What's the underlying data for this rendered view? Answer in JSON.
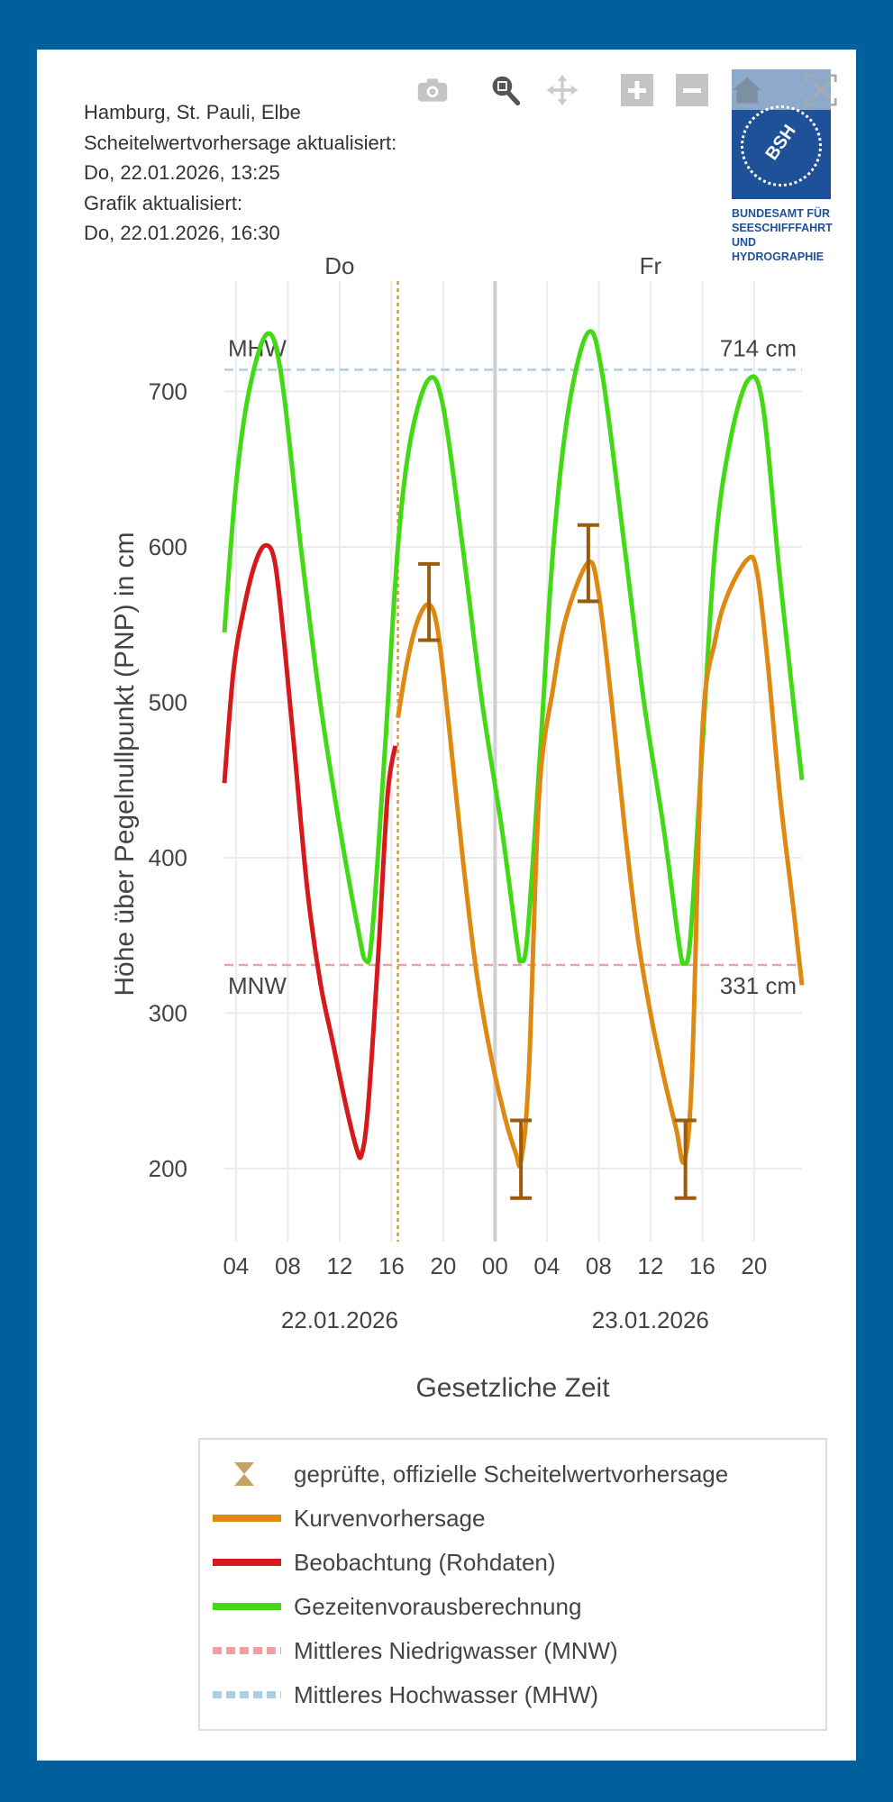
{
  "info": {
    "station": "Hamburg, St. Pauli, Elbe",
    "forecast_label": "Scheitelwertvorhersage aktualisiert:",
    "forecast_time": "Do, 22.01.2026, 13:25",
    "graphic_label": "Grafik aktualisiert:",
    "graphic_time": "Do, 22.01.2026, 16:30"
  },
  "logo": {
    "abbr": "BSH",
    "lines": [
      "BUNDESAMT FÜR",
      "SEESCHIFFFAHRT",
      "UND",
      "HYDROGRAPHIE"
    ]
  },
  "toolbar": [
    "camera-icon",
    "zoom-icon",
    "pan-icon",
    "zoom-in-icon",
    "zoom-out-icon",
    "home-icon",
    "autoscale-icon"
  ],
  "colors": {
    "forecast": "#de8a12",
    "observation": "#d7191c",
    "tide": "#44d916",
    "mnw": "#f0a0a0",
    "mhw": "#a8cfe8",
    "errorbar": "#9b5b0c",
    "bg": "#00609c"
  },
  "chart_data": {
    "type": "line",
    "xlabel": "Gesetzliche Zeit",
    "ylabel": "Höhe über Pegelnullpunkt (PNP) in cm",
    "xlim_hours": [
      3.1,
      47.7
    ],
    "ylim": [
      153,
      771
    ],
    "yticks": [
      200,
      300,
      400,
      500,
      600,
      700
    ],
    "xticks": [
      {
        "h": 4,
        "label": "04"
      },
      {
        "h": 8,
        "label": "08"
      },
      {
        "h": 12,
        "label": "12"
      },
      {
        "h": 16,
        "label": "16"
      },
      {
        "h": 20,
        "label": "20"
      },
      {
        "h": 24,
        "label": "00"
      },
      {
        "h": 28,
        "label": "04"
      },
      {
        "h": 32,
        "label": "08"
      },
      {
        "h": 36,
        "label": "12"
      },
      {
        "h": 40,
        "label": "16"
      },
      {
        "h": 44,
        "label": "20"
      }
    ],
    "dates": [
      {
        "h": 12,
        "label": "22.01.2026"
      },
      {
        "h": 36,
        "label": "23.01.2026"
      }
    ],
    "days": [
      {
        "h": 12,
        "label": "Do"
      },
      {
        "h": 36,
        "label": "Fr"
      }
    ],
    "now_hour": 16.5,
    "day_break_hour": 24,
    "mhw": {
      "value": 714,
      "label": "MHW",
      "value_label": "714 cm"
    },
    "mnw": {
      "value": 331,
      "label": "MNW",
      "value_label": "331 cm"
    },
    "series": [
      {
        "name": "Gezeitenvorausberechnung",
        "key": "tide",
        "points": [
          [
            3.1,
            545
          ],
          [
            4,
            640
          ],
          [
            5,
            700
          ],
          [
            6.4,
            737
          ],
          [
            7.5,
            710
          ],
          [
            9,
            600
          ],
          [
            10.5,
            500
          ],
          [
            12,
            420
          ],
          [
            13.4,
            355
          ],
          [
            14,
            334
          ],
          [
            14.5,
            350
          ],
          [
            15.5,
            470
          ],
          [
            16.5,
            600
          ],
          [
            17.5,
            670
          ],
          [
            18.9,
            708
          ],
          [
            20,
            690
          ],
          [
            21.5,
            600
          ],
          [
            23,
            500
          ],
          [
            24.5,
            420
          ],
          [
            25.7,
            345
          ],
          [
            26,
            334
          ],
          [
            26.5,
            350
          ],
          [
            27.5,
            470
          ],
          [
            28.5,
            600
          ],
          [
            29.7,
            690
          ],
          [
            31.2,
            738
          ],
          [
            32.3,
            710
          ],
          [
            34,
            600
          ],
          [
            35.5,
            500
          ],
          [
            37,
            420
          ],
          [
            38.2,
            345
          ],
          [
            38.6,
            332
          ],
          [
            39.1,
            350
          ],
          [
            40,
            470
          ],
          [
            41,
            600
          ],
          [
            42.2,
            670
          ],
          [
            43.6,
            708
          ],
          [
            44.7,
            690
          ],
          [
            46,
            580
          ],
          [
            47.7,
            450
          ]
        ]
      },
      {
        "name": "Beobachtung (Rohdaten)",
        "key": "observation",
        "points": [
          [
            3.1,
            448
          ],
          [
            3.8,
            520
          ],
          [
            4.6,
            560
          ],
          [
            5.5,
            590
          ],
          [
            6.3,
            601
          ],
          [
            7,
            590
          ],
          [
            7.7,
            540
          ],
          [
            8.5,
            470
          ],
          [
            9.5,
            380
          ],
          [
            10.5,
            320
          ],
          [
            11.5,
            280
          ],
          [
            12.5,
            240
          ],
          [
            13.3,
            213
          ],
          [
            13.7,
            209
          ],
          [
            14.2,
            240
          ],
          [
            15,
            340
          ],
          [
            15.7,
            440
          ],
          [
            16.3,
            472
          ]
        ]
      },
      {
        "name": "Kurvenvorhersage",
        "key": "forecast",
        "points": [
          [
            16.5,
            490
          ],
          [
            17.2,
            525
          ],
          [
            18,
            552
          ],
          [
            18.9,
            563
          ],
          [
            19.6,
            545
          ],
          [
            20.5,
            480
          ],
          [
            21.5,
            400
          ],
          [
            22.5,
            330
          ],
          [
            23.5,
            280
          ],
          [
            24.7,
            235
          ],
          [
            25.6,
            210
          ],
          [
            26,
            205
          ],
          [
            26.6,
            260
          ],
          [
            27.4,
            440
          ],
          [
            28.5,
            510
          ],
          [
            29.5,
            555
          ],
          [
            31.2,
            590
          ],
          [
            32,
            570
          ],
          [
            33,
            500
          ],
          [
            34,
            420
          ],
          [
            35,
            350
          ],
          [
            36,
            300
          ],
          [
            37,
            260
          ],
          [
            38,
            225
          ],
          [
            38.6,
            205
          ],
          [
            39.2,
            260
          ],
          [
            40,
            480
          ],
          [
            41,
            540
          ],
          [
            42,
            570
          ],
          [
            43.5,
            592
          ],
          [
            44.2,
            585
          ],
          [
            45,
            530
          ],
          [
            46,
            440
          ],
          [
            47,
            370
          ],
          [
            47.7,
            318
          ]
        ]
      }
    ],
    "errorbars": [
      {
        "h": 18.9,
        "value": 563,
        "low": 540,
        "high": 589
      },
      {
        "h": 26.0,
        "value": 205,
        "low": 181,
        "high": 231
      },
      {
        "h": 31.2,
        "value": 590,
        "low": 565,
        "high": 614
      },
      {
        "h": 38.7,
        "value": 205,
        "low": 181,
        "high": 231
      }
    ],
    "legend": [
      {
        "label": "geprüfte, offizielle Scheitelwertvorhersage",
        "symbol": "errorbar"
      },
      {
        "label": "Kurvenvorhersage",
        "symbol": "forecast"
      },
      {
        "label": "Beobachtung (Rohdaten)",
        "symbol": "observation"
      },
      {
        "label": "Gezeitenvorausberechnung",
        "symbol": "tide"
      },
      {
        "label": "Mittleres Niedrigwasser (MNW)",
        "symbol": "mnw"
      },
      {
        "label": "Mittleres Hochwasser (MHW)",
        "symbol": "mhw"
      }
    ]
  }
}
